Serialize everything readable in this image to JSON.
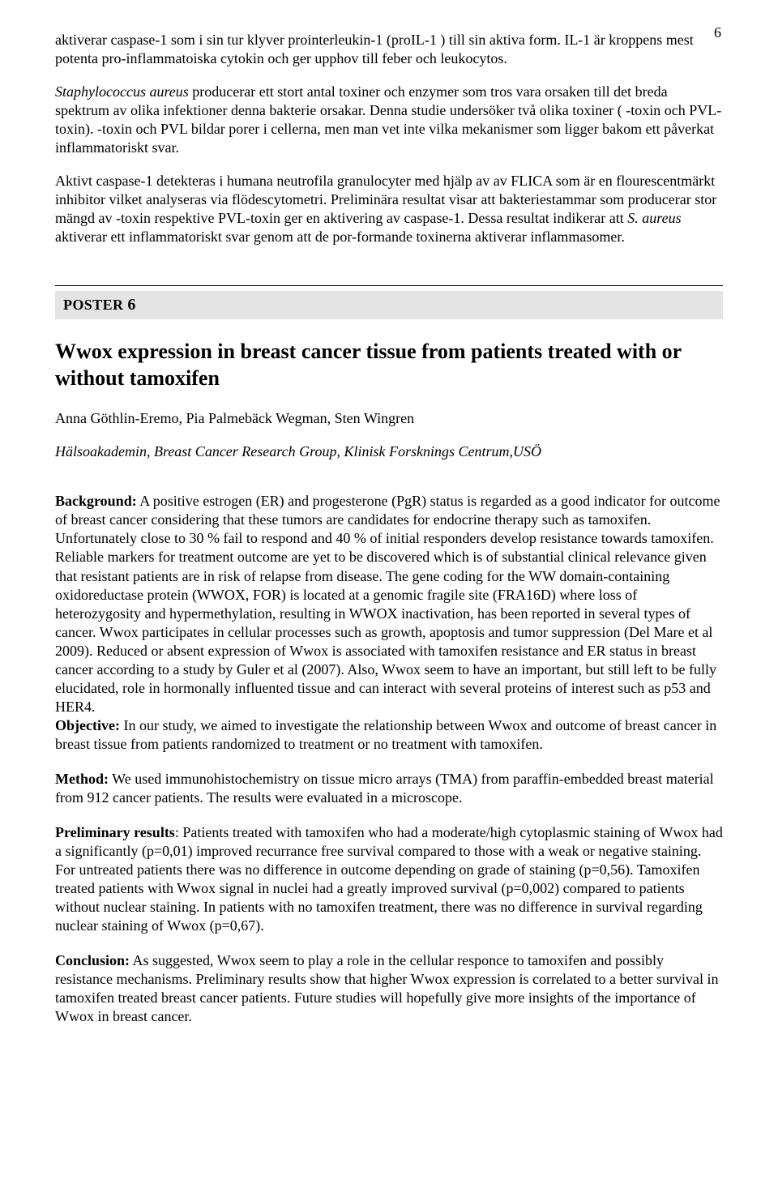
{
  "pageNumber": "6",
  "top": {
    "p1": "aktiverar caspase-1 som i sin tur klyver prointerleukin-1   (proIL-1  ) till sin aktiva form. IL-1   är kroppens mest potenta pro-inflammatoiska cytokin och ger upphov till feber och leukocytos.",
    "p2a": "Staphylococcus aureus",
    "p2b": " producerar ett stort antal toxiner och enzymer som tros vara orsaken till det breda spektrum av olika infektioner denna bakterie orsakar. Denna studie undersöker två olika toxiner (   -toxin och PVL-toxin).    -toxin och PVL bildar porer i cellerna, men man vet inte vilka mekanismer som ligger bakom ett påverkat inflammatoriskt svar.",
    "p3a": "Aktivt caspase-1 detekteras i humana neutrofila granulocyter med hjälp av av FLICA som är en flourescentmärkt inhibitor vilket analyseras via flödescytometri. Preliminära resultat visar att bakteriestammar som producerar stor mängd av    -toxin respektive PVL-toxin ger en aktivering av caspase-1. Dessa resultat indikerar att ",
    "p3b": "S. aureus",
    "p3c": " aktiverar ett inflammatoriskt svar genom att de por-formande toxinerna aktiverar inflammasomer."
  },
  "poster": {
    "label": "POSTER ",
    "num": "6",
    "title": "Wwox expression in breast cancer tissue from patients treated with or without tamoxifen",
    "authors": "Anna Göthlin-Eremo, Pia Palmebäck Wegman, Sten Wingren",
    "affiliation": "Hälsoakademin, Breast Cancer Research Group, Klinisk Forsknings Centrum,USÖ",
    "bgLabel": "Background:",
    "bgText": " A positive estrogen (ER) and progesterone (PgR) status is regarded as a good indicator for outcome of breast cancer considering that these tumors are candidates for endocrine therapy such as tamoxifen. Unfortunately close to 30 % fail to respond and 40 % of initial responders develop resistance towards tamoxifen. Reliable markers for treatment outcome are yet to be discovered which is of substantial clinical relevance given that resistant patients are in risk of relapse from disease. The gene coding for the WW domain-containing oxidoreductase protein (WWOX, FOR) is located at a genomic fragile site (FRA16D) where loss of heterozygosity and hypermethylation, resulting in WWOX inactivation, has been reported in several types of cancer. Wwox participates in cellular processes such as growth, apoptosis and tumor suppression (Del Mare et al 2009). Reduced or absent expression of Wwox is associated with tamoxifen resistance and ER status in breast cancer according to a study by Guler et al (2007). Also, Wwox seem to have an important, but still left to be fully elucidated, role in hormonally influented tissue and can interact with several proteins of interest such as p53 and HER4.",
    "objLabel": "Objective:",
    "objText": " In our study, we aimed to investigate the relationship between Wwox and outcome of breast cancer in breast tissue from patients randomized to treatment or no treatment with tamoxifen.",
    "methLabel": "Method:",
    "methText": " We used immunohistochemistry on tissue micro arrays (TMA) from paraffin-embedded breast material from 912 cancer patients. The results were evaluated in a microscope.",
    "prelLabel": "Preliminary results",
    "prelText": ": Patients treated with tamoxifen who had a moderate/high cytoplasmic staining of Wwox had a significantly (p=0,01) improved recurrance free survival compared to those with a weak or negative staining. For untreated patients there was no difference in outcome depending on grade of staining (p=0,56). Tamoxifen treated patients with Wwox signal in nuclei had a greatly improved survival (p=0,002) compared to patients without nuclear staining. In patients with no tamoxifen treatment, there was no difference in survival regarding nuclear staining of Wwox (p=0,67).",
    "concLabel": "Conclusion:",
    "concText": " As suggested, Wwox seem to play a role in the cellular responce to tamoxifen and possibly resistance mechanisms. Preliminary results show that higher Wwox expression is correlated to a better survival in tamoxifen treated breast cancer patients. Future studies will hopefully give more insights of the importance of Wwox in breast cancer."
  }
}
